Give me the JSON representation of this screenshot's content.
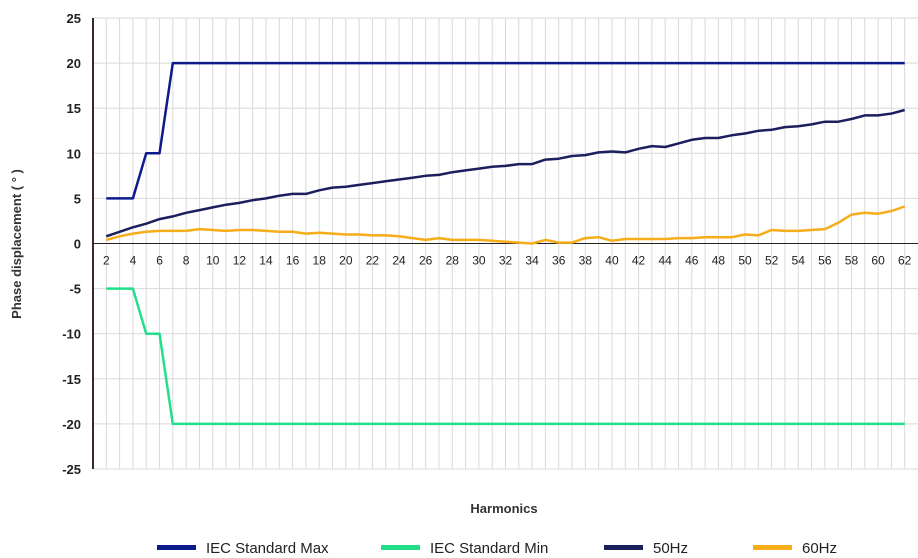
{
  "chart_data": {
    "type": "line",
    "xlabel": "Harmonics",
    "ylabel": "Phase displacement ( ° )",
    "xlim": [
      1,
      63
    ],
    "ylim": [
      -25,
      25
    ],
    "xticks": [
      2,
      4,
      6,
      8,
      10,
      12,
      14,
      16,
      18,
      20,
      22,
      24,
      26,
      28,
      30,
      32,
      34,
      36,
      38,
      40,
      42,
      44,
      46,
      48,
      50,
      52,
      54,
      56,
      58,
      60,
      62
    ],
    "yticks": [
      25,
      20,
      15,
      10,
      5,
      0,
      -5,
      -10,
      -15,
      -20,
      -25
    ],
    "ytick_labels": [
      "25",
      "20",
      "15",
      "10",
      "5",
      "0",
      "-5",
      "-10",
      "-15",
      "-20",
      "-25"
    ],
    "grid": true,
    "legend_position": "bottom",
    "series": [
      {
        "name": "IEC Standard Max",
        "color": "#0d1a8c",
        "x": [
          2,
          3,
          4,
          5,
          6,
          7,
          62
        ],
        "y": [
          5,
          5,
          5,
          10,
          10,
          20,
          20
        ]
      },
      {
        "name": "IEC Standard Min",
        "color": "#22e08a",
        "x": [
          2,
          3,
          4,
          5,
          6,
          7,
          62
        ],
        "y": [
          -5,
          -5,
          -5,
          -10,
          -10,
          -20,
          -20
        ]
      },
      {
        "name": "50Hz",
        "color": "#1c1f5e",
        "x": [
          2,
          3,
          4,
          5,
          6,
          7,
          8,
          9,
          10,
          11,
          12,
          13,
          14,
          15,
          16,
          17,
          18,
          19,
          20,
          21,
          22,
          23,
          24,
          25,
          26,
          27,
          28,
          29,
          30,
          31,
          32,
          33,
          34,
          35,
          36,
          37,
          38,
          39,
          40,
          41,
          42,
          43,
          44,
          45,
          46,
          47,
          48,
          49,
          50,
          51,
          52,
          53,
          54,
          55,
          56,
          57,
          58,
          59,
          60,
          61,
          62
        ],
        "y": [
          0.8,
          1.3,
          1.8,
          2.2,
          2.7,
          3.0,
          3.4,
          3.7,
          4.0,
          4.3,
          4.5,
          4.8,
          5.0,
          5.3,
          5.5,
          5.5,
          5.9,
          6.2,
          6.3,
          6.5,
          6.7,
          6.9,
          7.1,
          7.3,
          7.5,
          7.6,
          7.9,
          8.1,
          8.3,
          8.5,
          8.6,
          8.8,
          8.8,
          9.3,
          9.4,
          9.7,
          9.8,
          10.1,
          10.2,
          10.1,
          10.5,
          10.8,
          10.7,
          11.1,
          11.5,
          11.7,
          11.7,
          12.0,
          12.2,
          12.5,
          12.6,
          12.9,
          13.0,
          13.2,
          13.5,
          13.5,
          13.8,
          14.2,
          14.2,
          14.4,
          14.8
        ]
      },
      {
        "name": "60Hz",
        "color": "#f5ad1a",
        "x": [
          2,
          3,
          4,
          5,
          6,
          7,
          8,
          9,
          10,
          11,
          12,
          13,
          14,
          15,
          16,
          17,
          18,
          19,
          20,
          21,
          22,
          23,
          24,
          25,
          26,
          27,
          28,
          29,
          30,
          31,
          32,
          33,
          34,
          35,
          36,
          37,
          38,
          39,
          40,
          41,
          42,
          43,
          44,
          45,
          46,
          47,
          48,
          49,
          50,
          51,
          52,
          53,
          54,
          55,
          56,
          57,
          58,
          59,
          60,
          61,
          62
        ],
        "y": [
          0.4,
          0.8,
          1.1,
          1.3,
          1.4,
          1.4,
          1.4,
          1.6,
          1.5,
          1.4,
          1.5,
          1.5,
          1.4,
          1.3,
          1.3,
          1.1,
          1.2,
          1.1,
          1.0,
          1.0,
          0.9,
          0.9,
          0.8,
          0.6,
          0.4,
          0.6,
          0.4,
          0.4,
          0.4,
          0.3,
          0.2,
          0.1,
          0.0,
          0.4,
          0.1,
          0.1,
          0.6,
          0.7,
          0.3,
          0.5,
          0.5,
          0.5,
          0.5,
          0.6,
          0.6,
          0.7,
          0.7,
          0.7,
          1.0,
          0.9,
          1.5,
          1.4,
          1.4,
          1.5,
          1.6,
          2.3,
          3.2,
          3.4,
          3.3,
          3.6,
          4.1
        ]
      }
    ]
  }
}
